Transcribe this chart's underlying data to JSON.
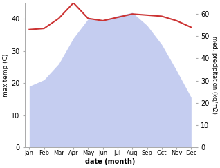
{
  "months": [
    "Jan",
    "Feb",
    "Mar",
    "Apr",
    "May",
    "Jun",
    "Jul",
    "Aug",
    "Sep",
    "Oct",
    "Nov",
    "Dec"
  ],
  "month_x": [
    0,
    1,
    2,
    3,
    4,
    5,
    6,
    7,
    8,
    9,
    10,
    11
  ],
  "temp": [
    19.0,
    21.0,
    26.0,
    34.0,
    40.0,
    39.5,
    41.0,
    42.0,
    38.0,
    32.0,
    24.0,
    15.5
  ],
  "precip": [
    53.0,
    53.5,
    58.0,
    65.0,
    58.0,
    57.0,
    58.5,
    60.0,
    59.5,
    59.0,
    57.0,
    54.0
  ],
  "temp_color": "#cc3333",
  "precip_fill_color": "#c5cdf0",
  "ylabel_left": "max temp (C)",
  "ylabel_right": "med. precipitation (kg/m2)",
  "xlabel": "date (month)",
  "ylim_left": [
    0,
    45
  ],
  "ylim_right": [
    0,
    65
  ],
  "yticks_left": [
    0,
    10,
    20,
    30,
    40
  ],
  "yticks_right": [
    0,
    10,
    20,
    30,
    40,
    50,
    60
  ],
  "background_color": "#ffffff",
  "spine_color": "#aaaaaa"
}
